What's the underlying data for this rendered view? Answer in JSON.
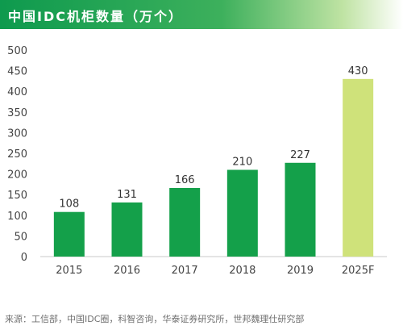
{
  "title": "中国IDC机柜数量（万个）",
  "source": "来源：工信部，中国IDC圈，科智咨询，华泰证券研究所，世邦魏理仕研究部",
  "colors": {
    "actual": "#14a04a",
    "forecast": "#cfe27a",
    "title_bar": "#0e9a4e"
  },
  "chart_data": {
    "type": "bar",
    "title": "中国IDC机柜数量（万个）",
    "categories": [
      "2015",
      "2016",
      "2017",
      "2018",
      "2019",
      "2025F"
    ],
    "values": [
      108,
      131,
      166,
      210,
      227,
      430
    ],
    "forecast": [
      false,
      false,
      false,
      false,
      false,
      true
    ],
    "yticks": [
      0,
      50,
      100,
      150,
      200,
      250,
      300,
      350,
      400,
      450,
      500
    ],
    "ylim": [
      0,
      500
    ],
    "xlabel": "",
    "ylabel": "",
    "grid": false,
    "legend": "none"
  }
}
